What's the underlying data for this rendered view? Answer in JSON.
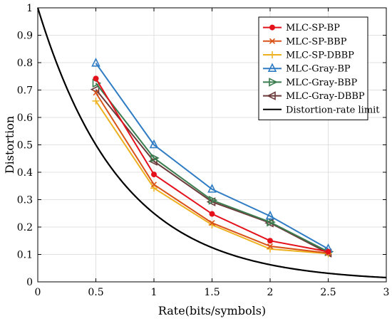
{
  "chart_data": {
    "type": "line",
    "xlabel": "Rate(bits/symbols)",
    "ylabel": "Distortion",
    "xlim": [
      0,
      3
    ],
    "ylim": [
      0,
      1
    ],
    "xticks": [
      "0",
      "0.5",
      "1",
      "1.5",
      "2",
      "2.5",
      "3"
    ],
    "yticks": [
      "0",
      "0.1",
      "0.2",
      "0.3",
      "0.4",
      "0.5",
      "0.6",
      "0.7",
      "0.8",
      "0.9",
      "1"
    ],
    "grid": true,
    "legend_position": "top-right",
    "series": [
      {
        "name": "MLC-SP-BP",
        "color": "#e4111b",
        "marker": "circle",
        "x": [
          0.5,
          1,
          1.5,
          2,
          2.5
        ],
        "y": [
          0.742,
          0.392,
          0.248,
          0.15,
          0.11
        ]
      },
      {
        "name": "MLC-SP-BBP",
        "color": "#d95319",
        "marker": "x",
        "x": [
          0.5,
          1,
          1.5,
          2,
          2.5
        ],
        "y": [
          0.69,
          0.355,
          0.215,
          0.13,
          0.105
        ]
      },
      {
        "name": "MLC-SP-DBBP",
        "color": "#edb120",
        "marker": "plus",
        "x": [
          0.5,
          1,
          1.5,
          2,
          2.5
        ],
        "y": [
          0.66,
          0.342,
          0.208,
          0.12,
          0.103
        ]
      },
      {
        "name": "MLC-Gray-BP",
        "color": "#2f7cc4",
        "marker": "triangle-up",
        "x": [
          0.5,
          1,
          1.5,
          2,
          2.5
        ],
        "y": [
          0.798,
          0.5,
          0.338,
          0.24,
          0.12
        ]
      },
      {
        "name": "MLC-Gray-BBP",
        "color": "#3b7d4f",
        "marker": "triangle-right",
        "x": [
          0.5,
          1,
          1.5,
          2,
          2.5
        ],
        "y": [
          0.725,
          0.452,
          0.298,
          0.218,
          0.11
        ]
      },
      {
        "name": "MLC-Gray-DBBP",
        "color": "#6b3a3a",
        "marker": "triangle-left",
        "x": [
          0.5,
          1,
          1.5,
          2,
          2.5
        ],
        "y": [
          0.702,
          0.44,
          0.292,
          0.215,
          0.105
        ]
      },
      {
        "name": "Distortion-rate limit",
        "color": "#000000",
        "marker": "none",
        "function": "2^(-2R)"
      }
    ]
  }
}
